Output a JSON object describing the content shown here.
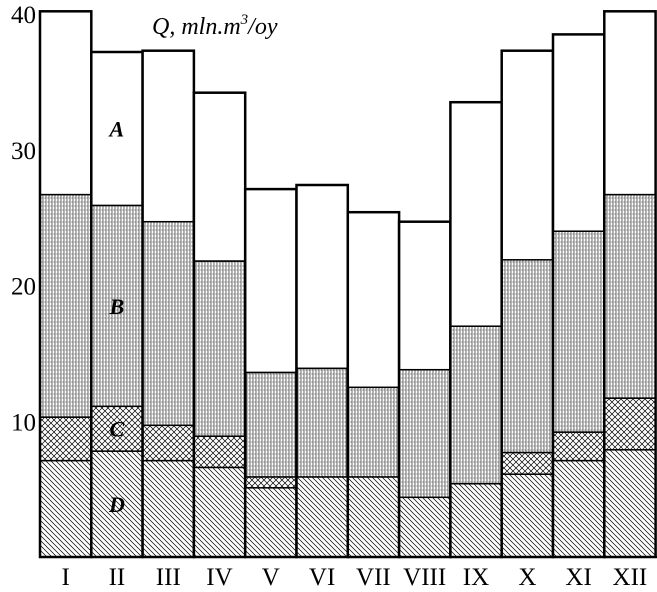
{
  "chart_data": {
    "type": "bar",
    "stacked": true,
    "ylabel": "Q, mln.m³/oy",
    "ylim": [
      0,
      40
    ],
    "yticks": [
      10,
      20,
      30,
      40
    ],
    "categories": [
      "I",
      "II",
      "III",
      "IV",
      "V",
      "VI",
      "VII",
      "VIII",
      "IX",
      "X",
      "XI",
      "XII"
    ],
    "series": [
      {
        "name": "D",
        "pattern": "diagonal-hatch",
        "values": [
          7.1,
          7.8,
          7.1,
          6.6,
          5.1,
          5.9,
          5.9,
          4.4,
          5.4,
          6.1,
          7.1,
          7.9
        ]
      },
      {
        "name": "C",
        "pattern": "cross-hatch",
        "values": [
          3.2,
          3.3,
          2.6,
          2.3,
          0.8,
          0.0,
          0.0,
          0.0,
          0.0,
          1.6,
          2.1,
          3.8
        ]
      },
      {
        "name": "B",
        "pattern": "vertical-hatch",
        "values": [
          16.4,
          14.8,
          15.0,
          12.9,
          7.7,
          8.0,
          6.6,
          9.4,
          11.6,
          14.2,
          14.8,
          15.0
        ]
      },
      {
        "name": "A",
        "pattern": "none",
        "values": [
          13.5,
          11.3,
          12.6,
          12.4,
          13.5,
          13.5,
          12.9,
          10.9,
          16.5,
          15.4,
          14.5,
          13.5
        ]
      }
    ],
    "totals": [
      40.2,
      37.2,
      37.3,
      34.2,
      27.1,
      27.4,
      25.4,
      24.7,
      33.5,
      37.3,
      38.5,
      40.2
    ],
    "segment_labels": [
      "A",
      "B",
      "C",
      "D"
    ],
    "segment_label_column": "II",
    "colors": {
      "stroke": "#000000",
      "hatch": "#000000",
      "background": "#ffffff"
    }
  }
}
